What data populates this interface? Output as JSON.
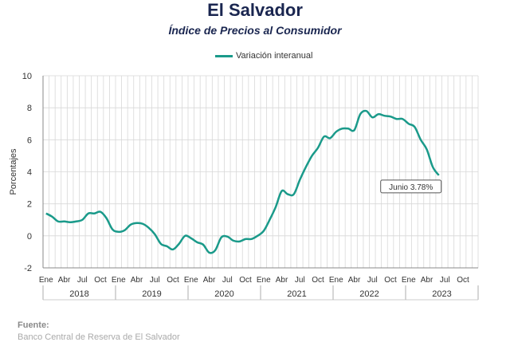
{
  "title": "El Salvador",
  "subtitle": "Índice de Precios al Consumidor",
  "source_label": "Fuente:",
  "source_text": "Banco Central de Reserva de El Salvador",
  "colors": {
    "line": "#1a9a8a",
    "grid": "#d8d8d8",
    "axis": "#888888"
  },
  "chart_data": {
    "type": "line",
    "ylabel": "Porcentajes",
    "ylim": [
      -2,
      10
    ],
    "yticks": [
      -2,
      0,
      2,
      4,
      6,
      8,
      10
    ],
    "month_labels": [
      "Ene",
      "Abr",
      "Jul",
      "Oct"
    ],
    "year_labels": [
      "2018",
      "2019",
      "2020",
      "2021",
      "2022",
      "2023"
    ],
    "callout": "Junio 3.78%",
    "series": [
      {
        "name": "Variación interanual",
        "values": [
          1.4,
          1.2,
          0.9,
          0.9,
          0.85,
          0.9,
          1.0,
          1.4,
          1.4,
          1.5,
          1.1,
          0.4,
          0.25,
          0.35,
          0.7,
          0.8,
          0.75,
          0.5,
          0.1,
          -0.5,
          -0.65,
          -0.85,
          -0.5,
          0.0,
          -0.15,
          -0.4,
          -0.55,
          -1.05,
          -0.9,
          -0.1,
          -0.05,
          -0.3,
          -0.35,
          -0.2,
          -0.2,
          0.0,
          0.3,
          1.0,
          1.8,
          2.8,
          2.6,
          2.6,
          3.5,
          4.3,
          5.0,
          5.5,
          6.2,
          6.1,
          6.5,
          6.7,
          6.7,
          6.6,
          7.6,
          7.8,
          7.4,
          7.6,
          7.5,
          7.45,
          7.3,
          7.3,
          7.0,
          6.8,
          6.0,
          5.4,
          4.3,
          3.78
        ]
      }
    ]
  }
}
